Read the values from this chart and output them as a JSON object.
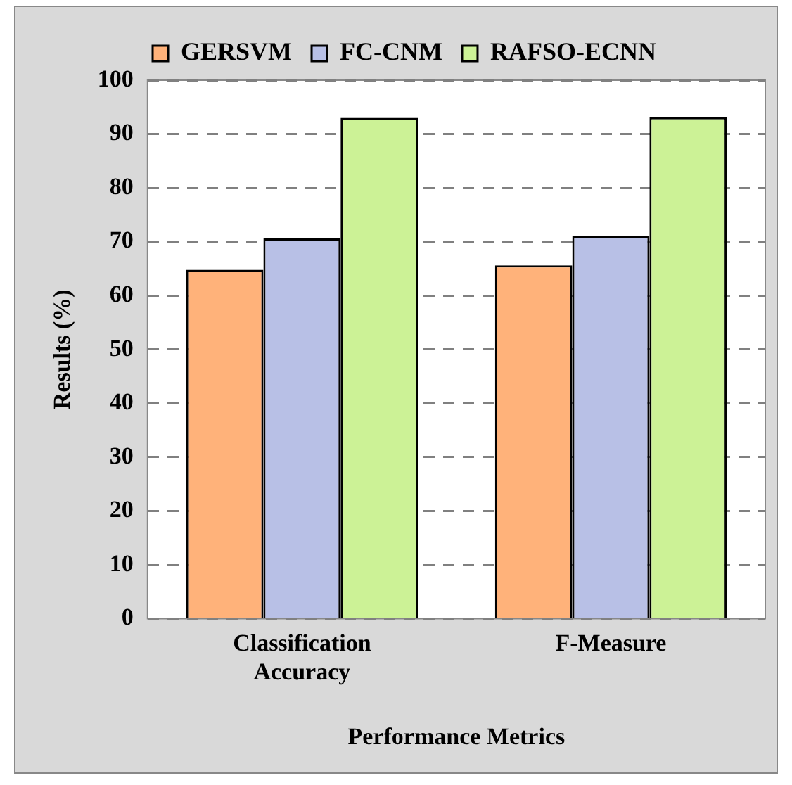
{
  "chart_data": {
    "type": "bar",
    "xlabel": "Performance Metrics",
    "ylabel": "Results (%)",
    "categories": [
      "Classification Accuracy",
      "F-Measure"
    ],
    "series": [
      {
        "name": "GERSVM",
        "color": "#ffb27a",
        "values": [
          64.8,
          65.6
        ]
      },
      {
        "name": "FC-CNM",
        "color": "#b8c0e6",
        "values": [
          70.6,
          71.1
        ]
      },
      {
        "name": "RAFSO-ECNN",
        "color": "#ccf296",
        "values": [
          93.0,
          93.1
        ]
      }
    ],
    "ylim": [
      0,
      100
    ],
    "yticks": [
      0,
      10,
      20,
      30,
      40,
      50,
      60,
      70,
      80,
      90,
      100
    ],
    "grid": "y",
    "legend": "top"
  }
}
